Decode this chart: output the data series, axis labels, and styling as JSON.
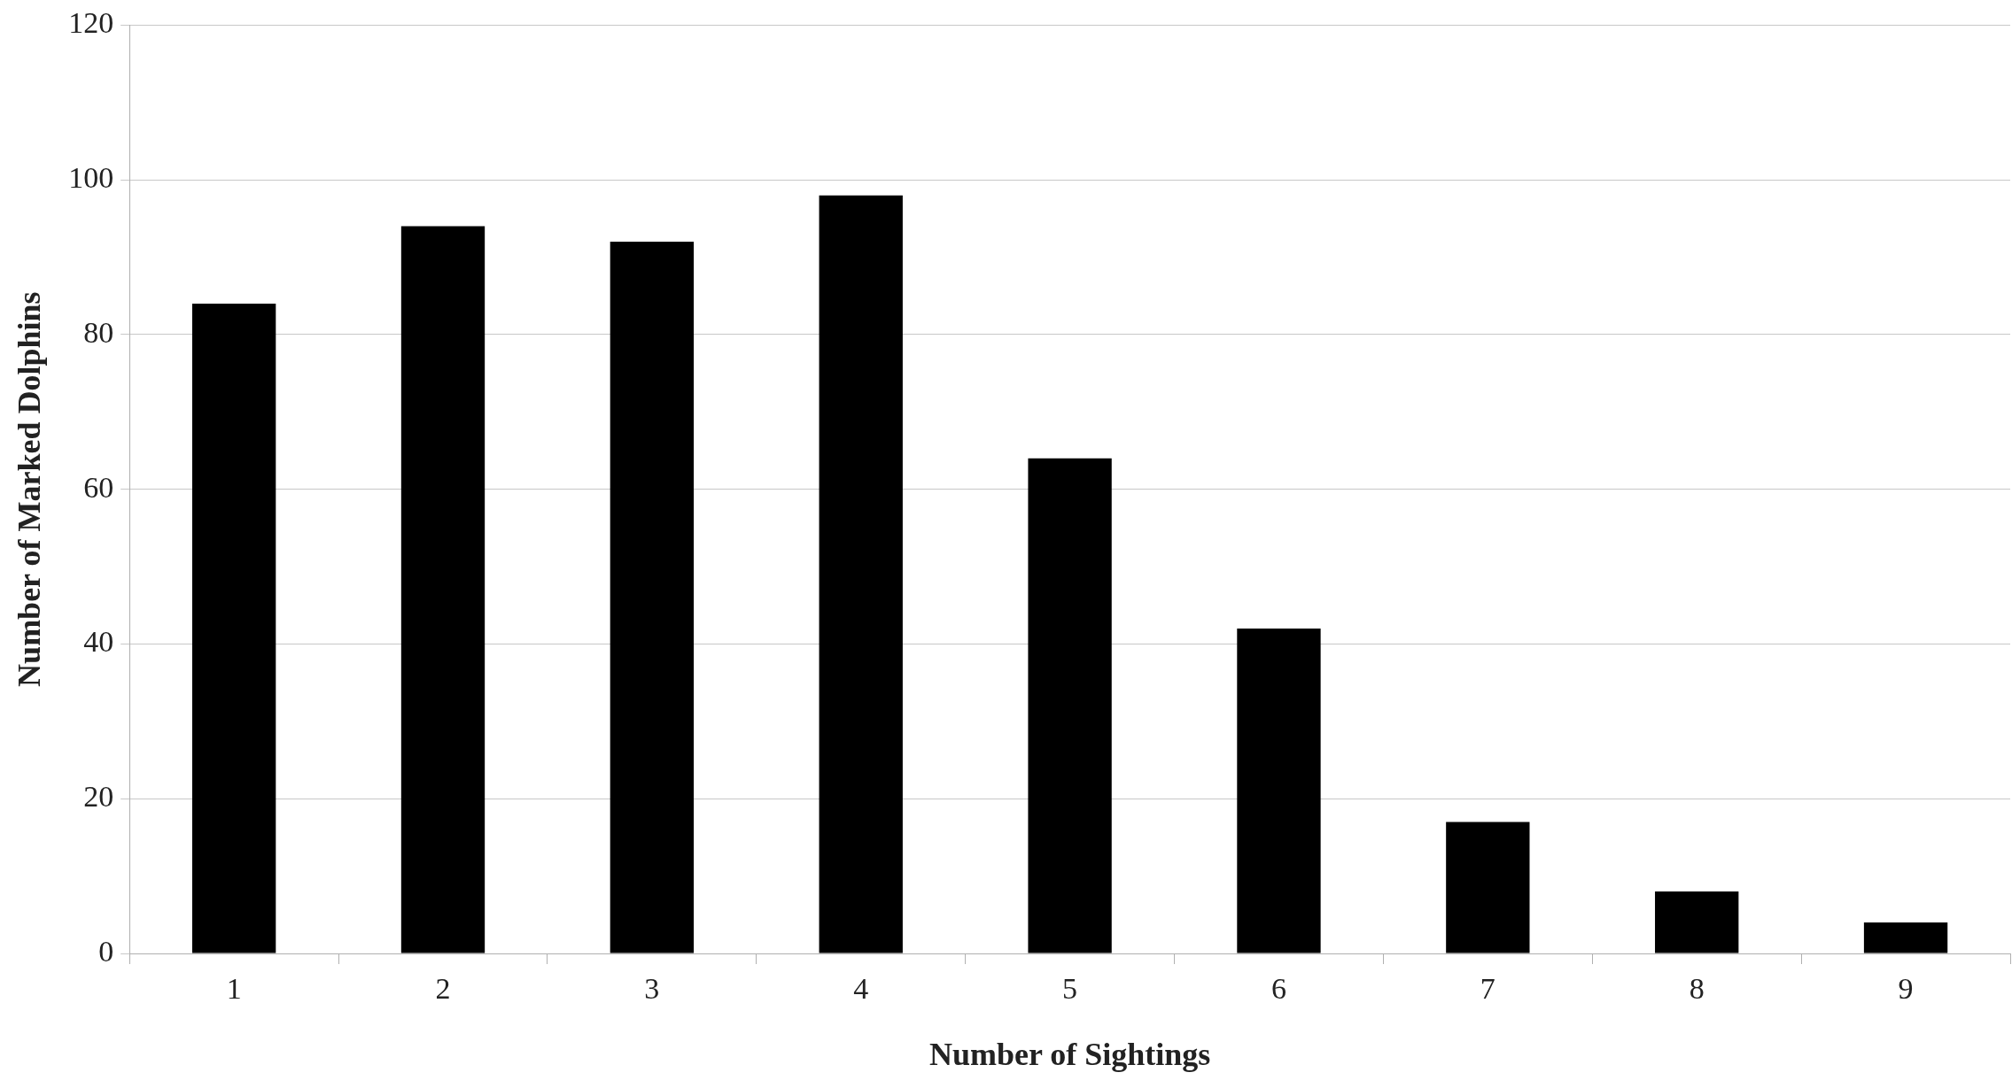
{
  "chart_data": {
    "type": "bar",
    "xlabel": "Number of Sightings",
    "ylabel": "Number of Marked Dolphins",
    "categories": [
      "1",
      "2",
      "3",
      "4",
      "5",
      "6",
      "7",
      "8",
      "9"
    ],
    "values": [
      84,
      94,
      92,
      98,
      64,
      42,
      17,
      8,
      4
    ],
    "color": "#000000",
    "ylim": [
      0,
      120
    ],
    "yticks": [
      0,
      20,
      40,
      60,
      80,
      100,
      120
    ],
    "grid": "y",
    "legend": false
  }
}
